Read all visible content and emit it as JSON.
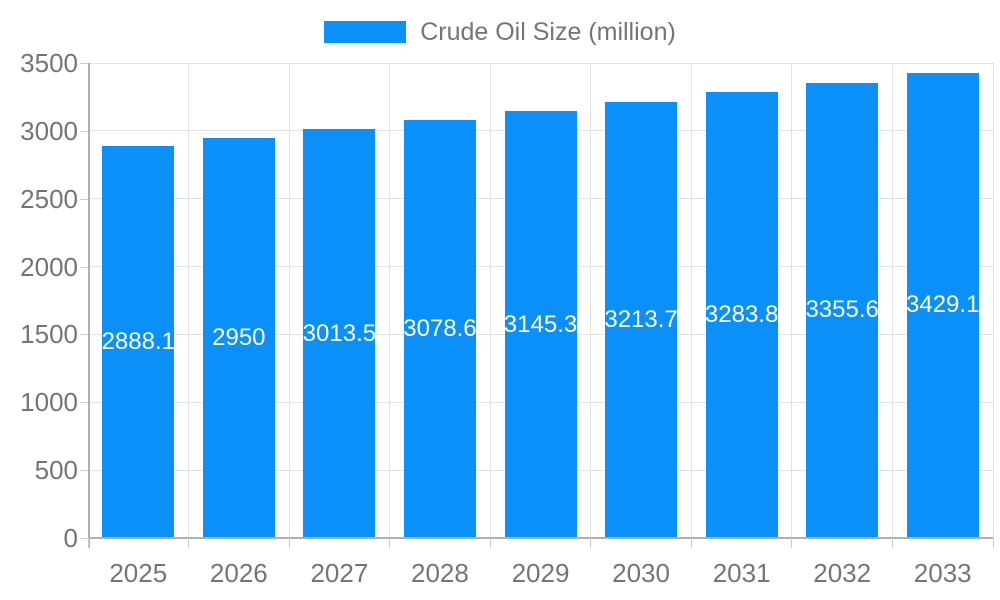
{
  "legend": {
    "label": "Crude Oil Size (million)"
  },
  "colors": {
    "bar": "#0a90f8",
    "bar_label": "#ffffff",
    "text": "#757575",
    "grid": "#e3e3e3",
    "axis": "#b0b0b0",
    "tick": "#cccccc",
    "background": "#ffffff"
  },
  "chart_data": {
    "type": "bar",
    "title": "Crude Oil Size (million)",
    "categories": [
      "2025",
      "2026",
      "2027",
      "2028",
      "2029",
      "2030",
      "2031",
      "2032",
      "2033"
    ],
    "values": [
      2888.1,
      2950,
      3013.5,
      3078.6,
      3145.3,
      3213.7,
      3283.8,
      3355.6,
      3429.1
    ],
    "bar_labels": [
      "2888.1",
      "2950",
      "3013.5",
      "3078.6",
      "3145.3",
      "3213.7",
      "3283.8",
      "3355.6",
      "3429.1"
    ],
    "xlabel": "",
    "ylabel": "",
    "ylim": [
      0,
      3500
    ],
    "ytick_interval": 500,
    "yticks": [
      0,
      500,
      1000,
      1500,
      2000,
      2500,
      3000,
      3500
    ],
    "grid": true,
    "legend_position": "top-center",
    "bar_value_labels": "centered-inside-white"
  }
}
